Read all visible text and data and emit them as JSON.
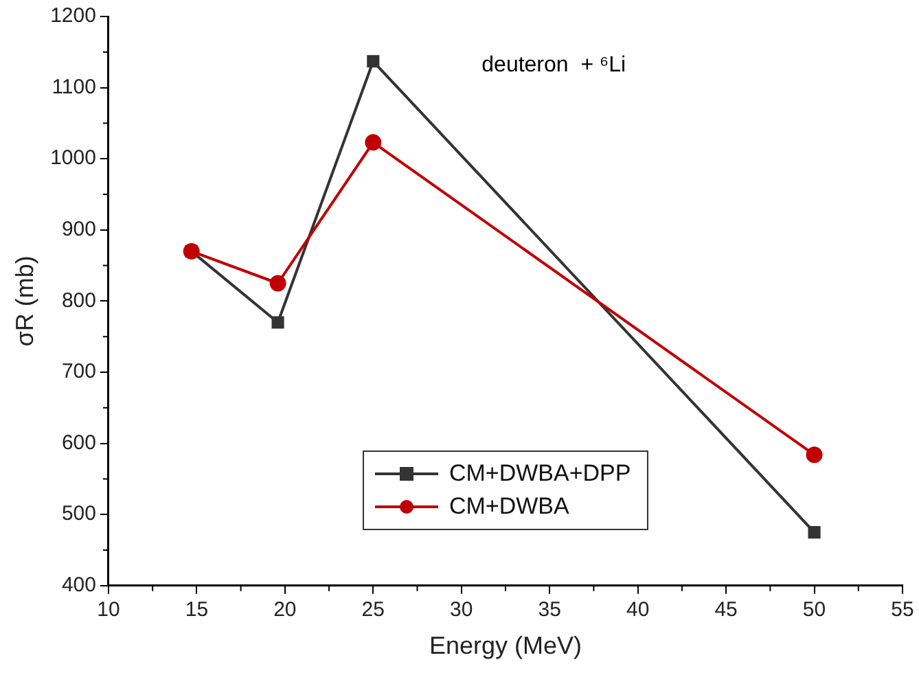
{
  "chart_data": {
    "type": "line",
    "xlabel": "Energy (MeV)",
    "ylabel": "σR (mb)",
    "annotations": [
      "deuteron  + ⁶Li"
    ],
    "xlim": [
      10,
      55
    ],
    "xticks": [
      10,
      15,
      20,
      25,
      30,
      35,
      40,
      45,
      50,
      55
    ],
    "ylim": [
      400,
      1200
    ],
    "yticks": [
      400,
      500,
      600,
      700,
      800,
      900,
      1000,
      1100,
      1200
    ],
    "grid": false,
    "legend": "bottom",
    "series": [
      {
        "name": "CM+DWBA+DPP",
        "color": "#333333",
        "marker": "square",
        "x": [
          14.7,
          19.6,
          25,
          50
        ],
        "values": [
          870,
          770,
          1137,
          475
        ]
      },
      {
        "name": "CM+DWBA",
        "color": "#c00000",
        "marker": "circle",
        "x": [
          14.7,
          19.6,
          25,
          50
        ],
        "values": [
          870,
          825,
          1023,
          584
        ]
      }
    ]
  }
}
